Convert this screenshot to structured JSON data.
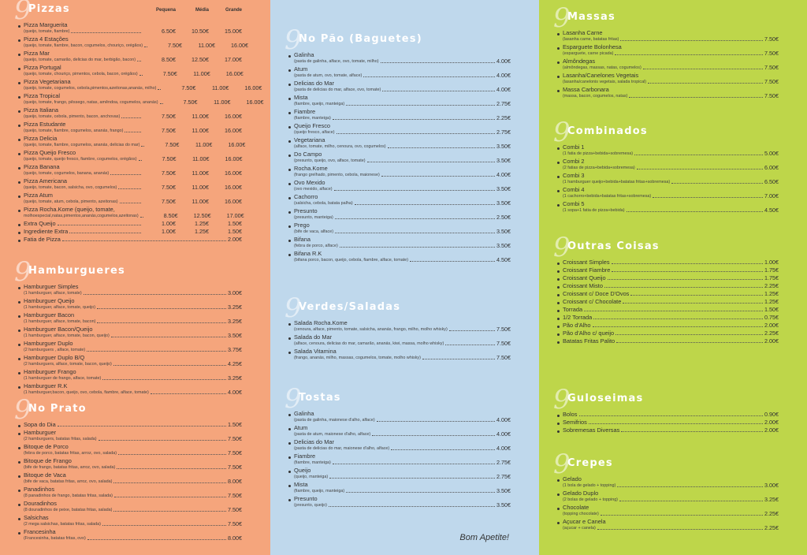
{
  "columns": {
    "left": {
      "pizzas": {
        "title": "Pizzas",
        "price_headers": [
          "Pequena",
          "Média",
          "Grande"
        ],
        "items": [
          {
            "name": "Pizza Marguerita",
            "desc": "(queijo, tomate, fiambre)",
            "prices": [
              "6.50€",
              "10.50€",
              "15.00€"
            ]
          },
          {
            "name": "Pizza 4 Estações",
            "desc": "(queijo, tomate, fiambre, bacon, cogumelos, chouriço, orégãos)",
            "prices": [
              "7.50€",
              "11.00€",
              "16.00€"
            ]
          },
          {
            "name": "Pizza Mar",
            "desc": "(queijo, tomate, camarão, delicias do mar, berbigão, bacon)",
            "prices": [
              "8.50€",
              "12.50€",
              "17.00€"
            ]
          },
          {
            "name": "Pizza Portugal",
            "desc": "(queijo, tomate, chouriço, pimentos, cebola, bacon, orégãos)",
            "prices": [
              "7.50€",
              "11.00€",
              "16.00€"
            ]
          },
          {
            "name": "Pizza Vegetariana",
            "desc": "(queijo, tomate, cogumelos, cebola,pimentos,azeitonas,ananás, milho)",
            "prices": [
              "7.50€",
              "11.00€",
              "16.00€"
            ]
          },
          {
            "name": "Pizza Tropical",
            "desc": "(queijo, tomate, frango, pêssego, natas, amêndoa, cogumelos, ananás)",
            "prices": [
              "7.50€",
              "11.00€",
              "16.00€"
            ]
          },
          {
            "name": "Pizza Italiana",
            "desc": "(queijo, tomate, cebola, pimento, bacon, anchovas)",
            "prices": [
              "7.50€",
              "11.00€",
              "16.00€"
            ]
          },
          {
            "name": "Pizza Estudante",
            "desc": "(queijo, tomate, fiambre, cogumelos, ananás, frango)",
            "prices": [
              "7.50€",
              "11.00€",
              "16.00€"
            ]
          },
          {
            "name": "Pizza Delicia",
            "desc": "(queijo, tomate, fiambre, cogumelos, ananás, delicias do mar)",
            "prices": [
              "7.50€",
              "11.00€",
              "16.00€"
            ]
          },
          {
            "name": "Pizza Queijo Fresco",
            "desc": "(queijo, tomate, queijo fresco, fiambre, cogumelos, orégãos)",
            "prices": [
              "7.50€",
              "11.00€",
              "16.00€"
            ]
          },
          {
            "name": "Pizza Banana",
            "desc": "(queijo, tomate, cogumelos, banana, ananás)",
            "prices": [
              "7.50€",
              "11.00€",
              "16.00€"
            ]
          },
          {
            "name": "Pizza Americana",
            "desc": "(queijo, tomate, bacon, salsicha, ovo, cogumelos)",
            "prices": [
              "7.50€",
              "11.00€",
              "16.00€"
            ]
          },
          {
            "name": "Pizza Atum",
            "desc": "(queijo, tomate, atum, cebola, pimento, azeitonas)",
            "prices": [
              "7.50€",
              "11.00€",
              "16.00€"
            ]
          },
          {
            "name": "Pizza Rocha.Kome (queijo, tomate,",
            "desc": "molhoespecial,natas,pimentos,ananás,cogumelos,azeitonas)",
            "prices": [
              "8.50€",
              "12.50€",
              "17.00€"
            ]
          }
        ],
        "extras": [
          {
            "name": "Extra Queijo",
            "prices": [
              "1.00€",
              "1.25€",
              "1.50€"
            ]
          },
          {
            "name": "Ingrediente Extra",
            "prices": [
              "1.00€",
              "1.25€",
              "1.50€"
            ]
          },
          {
            "name": "Fatia de Pizza",
            "price": "2.00€"
          }
        ]
      },
      "hamburgueres": {
        "title": "Hamburgueres",
        "items": [
          {
            "name": "Hamburguer Simples",
            "desc": "(1 hamburguer, alface, tomate)",
            "price": "3.00€"
          },
          {
            "name": "Hamburguer Queijo",
            "desc": "(1 hamburguer, alface, tomate, queijo)",
            "price": "3.25€"
          },
          {
            "name": "Hamburguer Bacon",
            "desc": "(1 hamburguer, alface, tomate, bacon)",
            "price": "3.25€"
          },
          {
            "name": "Hamburguer Bacon/Queijo",
            "desc": "(1 hamburguer, alface, tomate, bacon, queijo)",
            "price": "3.50€"
          },
          {
            "name": "Hamburguer Duplo",
            "desc": "(2 hamburguers , alface, tomate)",
            "price": "3.75€"
          },
          {
            "name": "Hamburguer Duplo B/Q",
            "desc": "(2 hamburguers, alface, tomate, bacon, queijo)",
            "price": "4.25€"
          },
          {
            "name": "Hamburguer Frango",
            "desc": "(1 hamburguer de frango, alface, tomate)",
            "price": "3.25€"
          },
          {
            "name": "Hamburguer R.K",
            "desc": "(1 hamburguer,bacon, queijo, ovo, cebola, fiambre, alface, tomate)",
            "price": "4.00€"
          }
        ]
      },
      "no_prato": {
        "title": "No Prato",
        "items": [
          {
            "name": "Sopa do Dia",
            "desc": "",
            "price": "1.50€"
          },
          {
            "name": "Hamburguer",
            "desc": "(2 hamburguers, batatas fritas, salada)",
            "price": "7.50€"
          },
          {
            "name": "Bitoque de Porco",
            "desc": "(febra de porco, batatas fritas, arroz, ovo, salada)",
            "price": "7.50€"
          },
          {
            "name": "Bitoque de Frango",
            "desc": "(bife de frango, batatas fritas, arroz, ovo, salada)",
            "price": "7.50€"
          },
          {
            "name": "Bitoque de Vaca",
            "desc": "(bife de vaca, batatas fritas, arroz, ovo, salada)",
            "price": "8.00€"
          },
          {
            "name": "Panadinhos",
            "desc": "(8 panadinhos de frango, batatas fritas, salada)",
            "price": "7.50€"
          },
          {
            "name": "Douradinhos",
            "desc": "(8 douradinhos de peixe, batatas fritas, salada)",
            "price": "7.50€"
          },
          {
            "name": "Salsichas",
            "desc": "(2 mega salsichas, batatas fritas, salada)",
            "price": "7.50€"
          },
          {
            "name": "Francesinha",
            "desc": "(Francesinha, batatas fritas, ovo)",
            "price": "8.00€"
          }
        ]
      }
    },
    "middle": {
      "no_pao": {
        "title": "No Pão (Baguetes)",
        "items": [
          {
            "name": "Galinha",
            "desc": "(pasta de galinha, alface, ovo, tomate, milho)",
            "price": "4.00€"
          },
          {
            "name": "Atum",
            "desc": "(pasta de atum, ovo, tomate, alface)",
            "price": "4.00€"
          },
          {
            "name": "Delicias do Mar",
            "desc": "(pasta de delicias do mar, alface, ovo, tomate)",
            "price": "4.00€"
          },
          {
            "name": "Mista",
            "desc": "(fiambre, queijo, manteiga)",
            "price": "2.75€"
          },
          {
            "name": "Fiambre",
            "desc": "(fiambre, manteiga)",
            "price": "2.25€"
          },
          {
            "name": "Queijo Fresco",
            "desc": "(queijo fresco, alface)",
            "price": "2.75€"
          },
          {
            "name": "Vegetariana",
            "desc": "(alface, tomate, milho, cenoura, ovo, cogumelos)",
            "price": "3.50€"
          },
          {
            "name": "Do Campo",
            "desc": "(presunto, queijo, ovo, alface, tomate)",
            "price": "3.50€"
          },
          {
            "name": "Rocha.Kome",
            "desc": "(frango grelhado, pimento, cebola, maionese)",
            "price": "4.00€"
          },
          {
            "name": "Ovo Mexido",
            "desc": "(ovo mexido, alface)",
            "price": "3.50€"
          },
          {
            "name": "Cachorro",
            "desc": "(salsicha, cebola, batata palha)",
            "price": "3.50€"
          },
          {
            "name": "Presunto",
            "desc": "(presunto, manteiga)",
            "price": "2.50€"
          },
          {
            "name": "Prego",
            "desc": "(bife de vaca, alface)",
            "price": "3.50€"
          },
          {
            "name": "Bifana",
            "desc": "(febra de porco, alface)",
            "price": "3.50€"
          },
          {
            "name": "Bifana R.K",
            "desc": "(bifana porco, bacon, queijo, cebola, fiambre, alface, tomate)",
            "price": "4.50€"
          }
        ]
      },
      "verdes_saladas": {
        "title": "Verdes/Saladas",
        "items": [
          {
            "name": "Salada Rocha.Kome",
            "desc": "(cenoura, alface, pimento, tomate, salsicha, ananás, frango, milho, molho whisky)",
            "price": "7.50€"
          },
          {
            "name": "Salada do Mar",
            "desc": "(alface, cenoura, delicias do mar, camarão, ananás, kiwi, massa, molho whisky)",
            "price": "7.50€"
          },
          {
            "name": "Salada Vitamina",
            "desc": "(frango, ananás, milho, massas, cogumelos, tomate, molho whisky)",
            "price": "7.50€"
          }
        ]
      },
      "tostas": {
        "title": "Tostas",
        "items": [
          {
            "name": "Galinha",
            "desc": "(pasta de galinha, maionese d'alho, alface)",
            "price": "4.00€"
          },
          {
            "name": "Atum",
            "desc": "(pasta de atum, maionese d'alho, alface)",
            "price": "4.00€"
          },
          {
            "name": "Delicias do Mar",
            "desc": "(pasta de delicias do mar, maionese d'alho, alface)",
            "price": "4.00€"
          },
          {
            "name": "Fiambre",
            "desc": "(fiambre, manteiga)",
            "price": "2.75€"
          },
          {
            "name": "Queijo",
            "desc": "(queijo, manteiga)",
            "price": "2.75€"
          },
          {
            "name": "Mista",
            "desc": "(fiambre, queijo, manteiga)",
            "price": "3.50€"
          },
          {
            "name": "Presunto",
            "desc": "(presunto, queijo)",
            "price": "3.50€"
          }
        ]
      },
      "closing": "Bom Apetite!"
    },
    "right": {
      "massas": {
        "title": "Massas",
        "items": [
          {
            "name": "Lasanha Carne",
            "desc": "(lasanha carne, batatas fritas)",
            "price": "7.50€"
          },
          {
            "name": "Esparguete Bolonhesa",
            "desc": "(esparguete, carne picada)",
            "price": "7.50€"
          },
          {
            "name": "Almôndegas",
            "desc": "(almôndegas, massas, natas, cogumelos)",
            "price": "7.50€"
          },
          {
            "name": "Lasanha/Canelones Vegetais",
            "desc": "(lasanha/canelonis vegetais, salada tropical)",
            "price": "7.50€"
          },
          {
            "name": "Massa Carbonara",
            "desc": "(massa, bacon, cogumelos, natas)",
            "price": "7.50€"
          }
        ]
      },
      "combinados": {
        "title": "Combinados",
        "items": [
          {
            "name": "Combi 1",
            "desc": "(1 fatia de pizza+bebida+sobremesa)",
            "price": "5.00€"
          },
          {
            "name": "Combi 2",
            "desc": "(2 fatias de pizza+bebida+sobremesa)",
            "price": "6.00€"
          },
          {
            "name": "Combi 3",
            "desc": "(1 hamburguer queijo+bebida+batatas fritas+sobremesa)",
            "price": "6.50€"
          },
          {
            "name": "Combi 4",
            "desc": "(1 cachorro+bebida+batatas fritas+sobremesa)",
            "price": "7.00€"
          },
          {
            "name": "Combi 5",
            "desc": "(1 sopa+1 fatia de pizza+bebida)",
            "price": "4.50€"
          }
        ]
      },
      "outras_coisas": {
        "title": "Outras Coisas",
        "items": [
          {
            "name": "Croissant Simples",
            "price": "1.00€"
          },
          {
            "name": "Croissant Fiambre",
            "price": "1.75€"
          },
          {
            "name": "Croissant Queijo",
            "price": "1.75€"
          },
          {
            "name": "Croissant Misto",
            "price": "2.25€"
          },
          {
            "name": "Croissant c/ Doce D'Ovos",
            "price": "1.25€"
          },
          {
            "name": "Croissant c/ Chocolate",
            "price": "1.25€"
          },
          {
            "name": "Torrada",
            "price": "1.50€"
          },
          {
            "name": "1/2 Torrada",
            "price": "0.75€"
          },
          {
            "name": "Pão d'Alho",
            "price": "2.00€"
          },
          {
            "name": "Pão d'Alho c/ queijo",
            "price": "2.25€"
          },
          {
            "name": "Batatas Fritas Palito",
            "price": "2.00€"
          }
        ]
      },
      "guloseimas": {
        "title": "Guloseimas",
        "items": [
          {
            "name": "Bolos",
            "price": "0.90€"
          },
          {
            "name": "Semifrios",
            "price": "2.00€"
          },
          {
            "name": "Sobremesas Diversas",
            "price": "2.00€"
          }
        ]
      },
      "crepes": {
        "title": "Crepes",
        "items": [
          {
            "name": "Gelado",
            "desc": "(1 bola de gelado + topping)",
            "price": "3.00€"
          },
          {
            "name": "Gelado Duplo",
            "desc": "(2 bolas de gelado + topping)",
            "price": "3.25€"
          },
          {
            "name": "Chocolate",
            "desc": "(topping chocolate)",
            "price": "2.25€"
          },
          {
            "name": "Açucar e Canela",
            "desc": "(açucar + canela)",
            "price": "2.25€"
          }
        ]
      }
    }
  },
  "colors": {
    "orange_panel": "#f5a57c",
    "blue_panel": "#bfd8ec",
    "green_panel": "#bed64a",
    "title_text": "#ffffff"
  },
  "decor": {
    "swirl_glyph": "9"
  }
}
